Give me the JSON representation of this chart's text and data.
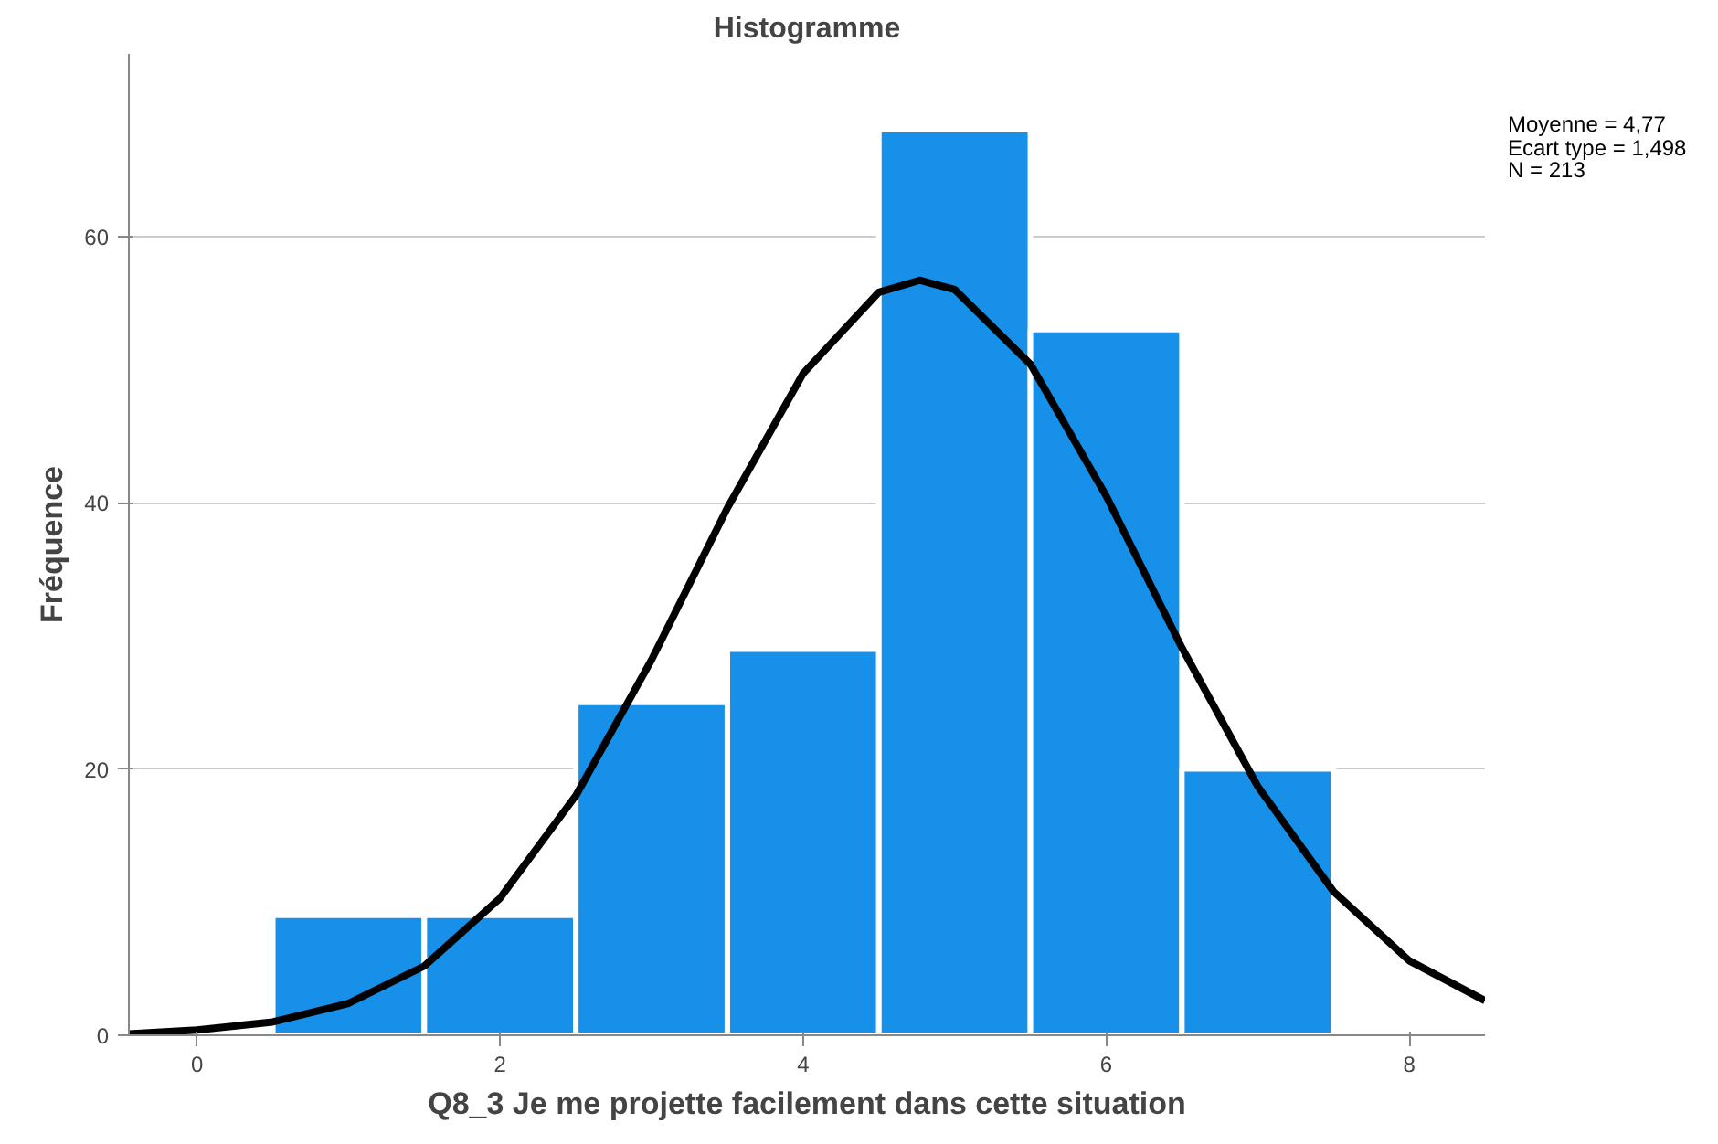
{
  "chart_data": {
    "type": "histogram",
    "title": "Histogramme",
    "xlabel": "Q8_3 Je me projette facilement dans cette situation",
    "ylabel": "Fréquence",
    "bins": [
      0.5,
      1.5,
      2.5,
      3.5,
      4.5,
      5.5,
      6.5,
      7.5
    ],
    "values": [
      9,
      9,
      25,
      29,
      68,
      53,
      20
    ],
    "color": "#1690e8",
    "series": [
      {
        "type": "line",
        "color": "#000000",
        "x": [
          -0.45,
          0,
          0.5,
          1,
          1.5,
          2,
          2.5,
          3,
          3.5,
          4,
          4.5,
          4.77,
          5,
          5.5,
          6,
          6.5,
          7,
          7.5,
          8,
          8.5
        ],
        "values": [
          0.1,
          0.4,
          1.0,
          2.4,
          5.2,
          10.3,
          18.0,
          28.2,
          39.6,
          49.7,
          55.8,
          56.7,
          56.0,
          50.4,
          40.5,
          29.1,
          18.7,
          10.8,
          5.6,
          2.6
        ]
      }
    ],
    "xlim": [
      -0.45,
      8.5
    ],
    "ylim": [
      0,
      73.7
    ],
    "xticks": [
      0,
      2,
      4,
      6,
      8
    ],
    "yticks": [
      0,
      20,
      40,
      60
    ],
    "grid": "y",
    "annotations": [
      "Moyenne = 4,77",
      "Ecart type = 1,498",
      "N = 213"
    ]
  }
}
